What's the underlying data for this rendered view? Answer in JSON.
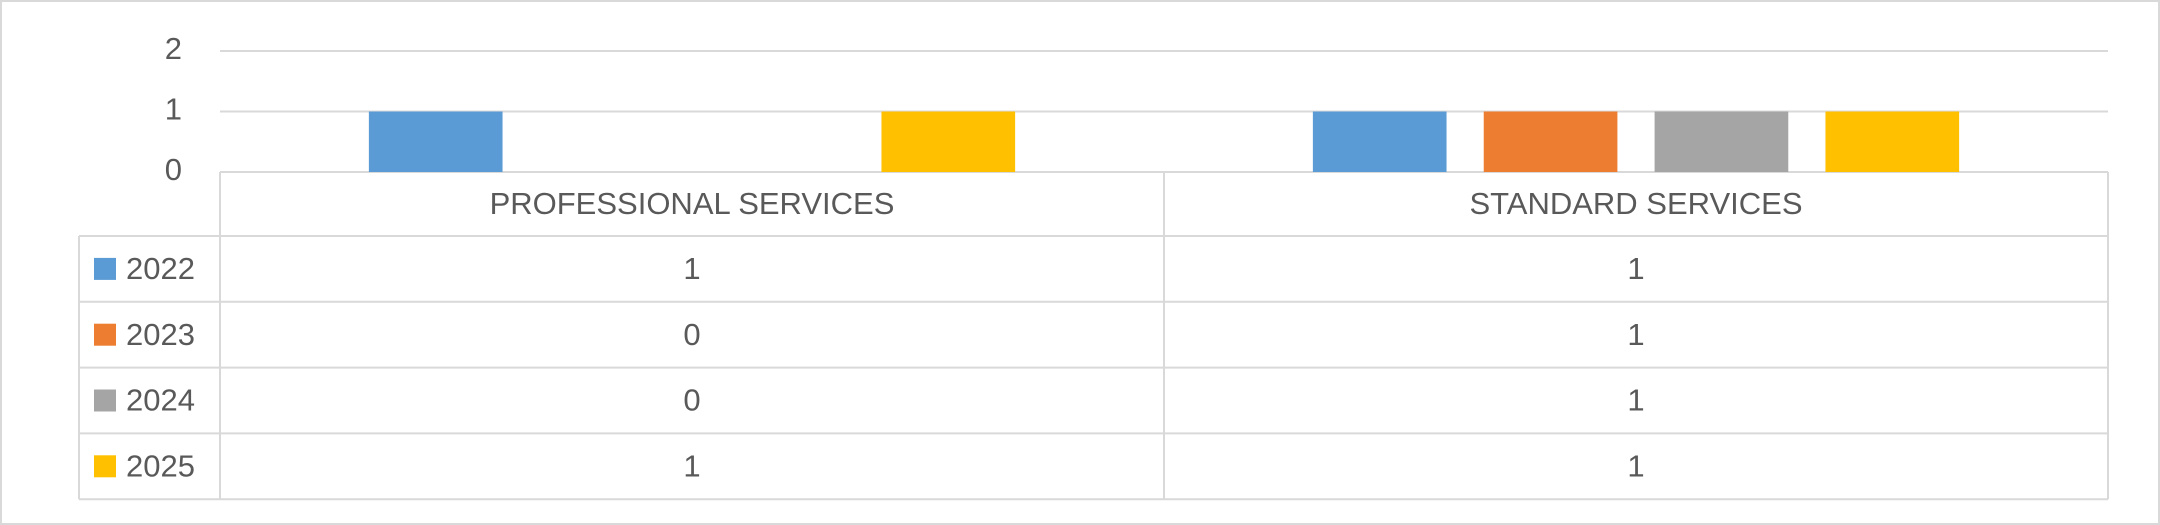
{
  "chart_data": {
    "type": "bar",
    "categories": [
      "PROFESSIONAL SERVICES",
      "STANDARD SERVICES"
    ],
    "series": [
      {
        "name": "2022",
        "color": "#5b9bd5",
        "values": [
          1,
          1
        ]
      },
      {
        "name": "2023",
        "color": "#ed7d31",
        "values": [
          0,
          1
        ]
      },
      {
        "name": "2024",
        "color": "#a5a5a5",
        "values": [
          0,
          1
        ]
      },
      {
        "name": "2025",
        "color": "#ffc000",
        "values": [
          1,
          1
        ]
      }
    ],
    "ylim": [
      0,
      2
    ],
    "yticks": [
      0,
      1,
      2
    ],
    "grid": true,
    "data_table": true
  }
}
